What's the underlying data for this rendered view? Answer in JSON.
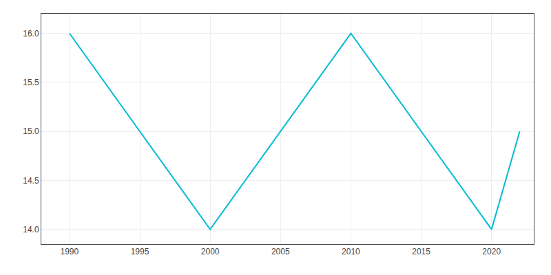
{
  "chart_data": {
    "type": "line",
    "x": [
      1990,
      2000,
      2010,
      2020,
      2022
    ],
    "values": [
      16,
      14,
      16,
      14,
      15
    ],
    "color": "#00bcd4",
    "xlim": [
      1988,
      2023
    ],
    "ylim": [
      13.85,
      16.2
    ],
    "xticks": [
      1990,
      1995,
      2000,
      2005,
      2010,
      2015,
      2020
    ],
    "yticks": [
      {
        "value": 14,
        "label": "14.0"
      },
      14.5,
      {
        "value": 15,
        "label": "15.0"
      },
      15.5,
      {
        "value": 16,
        "label": "16.0"
      }
    ],
    "grid": true
  }
}
